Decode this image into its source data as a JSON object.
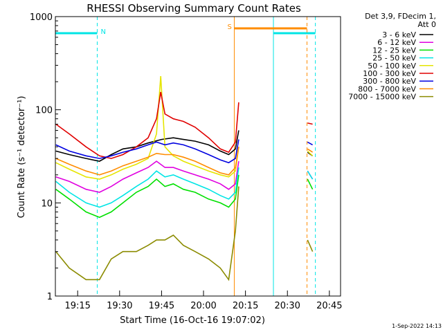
{
  "chart_data": {
    "type": "line",
    "title": "RHESSI Observing Summary Count Rates",
    "xlabel": "Start Time (16-Oct-16 19:07:02)",
    "ylabel": "Count Rate (s⁻¹ detector⁻¹)",
    "yscale": "log",
    "ylim": [
      1,
      1000
    ],
    "xlim": [
      "19:07:02",
      "20:49:00"
    ],
    "x_ticks": [
      "19:15",
      "19:30",
      "19:45",
      "20:00",
      "20:15",
      "20:30",
      "20:45"
    ],
    "y_ticks": [
      "1",
      "10",
      "100",
      "1000"
    ],
    "grid": false,
    "legend_position": "top-right",
    "info": {
      "line1": "Det 3,9, FDecim 1,",
      "line2": "Att 0"
    },
    "footer": "1-Sep-2022 14:13",
    "flags": [
      {
        "label": "N",
        "color": "#00e5e5",
        "intervals": [
          [
            "19:07:02",
            "19:22:00"
          ],
          [
            "20:25:00",
            "20:40:00"
          ]
        ]
      },
      {
        "label": "S",
        "color": "#ff8c00",
        "intervals": [
          [
            "20:11:00",
            "20:37:00"
          ]
        ]
      }
    ],
    "series": [
      {
        "name": "3 - 6 keV",
        "color": "#000000",
        "values": [
          [
            19.12,
            36
          ],
          [
            19.2,
            33
          ],
          [
            19.3,
            30
          ],
          [
            19.38,
            28
          ],
          [
            19.45,
            33
          ],
          [
            19.52,
            38
          ],
          [
            19.6,
            40
          ],
          [
            19.67,
            44
          ],
          [
            19.75,
            48
          ],
          [
            19.82,
            50
          ],
          [
            19.88,
            48
          ],
          [
            19.95,
            46
          ],
          [
            20.03,
            42
          ],
          [
            20.1,
            36
          ],
          [
            20.15,
            33
          ],
          [
            20.19,
            38
          ],
          [
            20.21,
            60
          ],
          [
            20.62,
            35
          ],
          [
            20.65,
            32
          ]
        ]
      },
      {
        "name": "6 - 12 keV",
        "color": "#e000e0",
        "values": [
          [
            19.12,
            19
          ],
          [
            19.2,
            17
          ],
          [
            19.3,
            14
          ],
          [
            19.38,
            13
          ],
          [
            19.45,
            15
          ],
          [
            19.52,
            18
          ],
          [
            19.6,
            21
          ],
          [
            19.67,
            24
          ],
          [
            19.72,
            28
          ],
          [
            19.77,
            24
          ],
          [
            19.82,
            24
          ],
          [
            19.88,
            22
          ],
          [
            19.95,
            20
          ],
          [
            20.03,
            18
          ],
          [
            20.1,
            16
          ],
          [
            20.15,
            14
          ],
          [
            20.19,
            16
          ],
          [
            20.21,
            28
          ],
          [
            20.62,
            22
          ],
          [
            20.65,
            18
          ]
        ]
      },
      {
        "name": "12 - 25 keV",
        "color": "#00e000",
        "values": [
          [
            19.12,
            14
          ],
          [
            19.2,
            11
          ],
          [
            19.3,
            8
          ],
          [
            19.38,
            7
          ],
          [
            19.45,
            8
          ],
          [
            19.52,
            10
          ],
          [
            19.6,
            13
          ],
          [
            19.67,
            15
          ],
          [
            19.72,
            18
          ],
          [
            19.77,
            15
          ],
          [
            19.82,
            16
          ],
          [
            19.88,
            14
          ],
          [
            19.95,
            13
          ],
          [
            20.03,
            11
          ],
          [
            20.1,
            10
          ],
          [
            20.15,
            9
          ],
          [
            20.19,
            11
          ],
          [
            20.21,
            20
          ],
          [
            20.62,
            18
          ],
          [
            20.65,
            14
          ]
        ]
      },
      {
        "name": "25 - 50 keV",
        "color": "#00e5e5",
        "values": [
          [
            19.12,
            17
          ],
          [
            19.2,
            13
          ],
          [
            19.3,
            10
          ],
          [
            19.38,
            9
          ],
          [
            19.45,
            10
          ],
          [
            19.52,
            12
          ],
          [
            19.6,
            15
          ],
          [
            19.67,
            18
          ],
          [
            19.72,
            22
          ],
          [
            19.77,
            19
          ],
          [
            19.82,
            20
          ],
          [
            19.88,
            18
          ],
          [
            19.95,
            16
          ],
          [
            20.03,
            14
          ],
          [
            20.1,
            12
          ],
          [
            20.15,
            11
          ],
          [
            20.19,
            13
          ],
          [
            20.21,
            24
          ],
          [
            20.62,
            22
          ],
          [
            20.65,
            18
          ]
        ]
      },
      {
        "name": "50 - 100 keV",
        "color": "#e5e500",
        "values": [
          [
            19.12,
            27
          ],
          [
            19.2,
            23
          ],
          [
            19.3,
            19
          ],
          [
            19.38,
            18
          ],
          [
            19.45,
            20
          ],
          [
            19.52,
            23
          ],
          [
            19.6,
            26
          ],
          [
            19.67,
            30
          ],
          [
            19.72,
            55
          ],
          [
            19.745,
            230
          ],
          [
            19.77,
            40
          ],
          [
            19.82,
            32
          ],
          [
            19.88,
            28
          ],
          [
            19.95,
            25
          ],
          [
            20.03,
            22
          ],
          [
            20.1,
            20
          ],
          [
            20.15,
            19
          ],
          [
            20.19,
            22
          ],
          [
            20.21,
            40
          ],
          [
            20.62,
            36
          ],
          [
            20.65,
            32
          ]
        ]
      },
      {
        "name": "100 - 300 keV",
        "color": "#e00000",
        "values": [
          [
            19.12,
            70
          ],
          [
            19.2,
            55
          ],
          [
            19.3,
            40
          ],
          [
            19.38,
            32
          ],
          [
            19.45,
            30
          ],
          [
            19.52,
            33
          ],
          [
            19.6,
            40
          ],
          [
            19.67,
            50
          ],
          [
            19.72,
            80
          ],
          [
            19.745,
            155
          ],
          [
            19.77,
            90
          ],
          [
            19.82,
            80
          ],
          [
            19.88,
            75
          ],
          [
            19.95,
            65
          ],
          [
            20.03,
            50
          ],
          [
            20.1,
            38
          ],
          [
            20.15,
            35
          ],
          [
            20.19,
            45
          ],
          [
            20.21,
            120
          ],
          [
            20.62,
            72
          ],
          [
            20.65,
            70
          ]
        ]
      },
      {
        "name": "300 - 800 keV",
        "color": "#0000e0",
        "values": [
          [
            19.12,
            42
          ],
          [
            19.2,
            36
          ],
          [
            19.3,
            32
          ],
          [
            19.38,
            30
          ],
          [
            19.45,
            32
          ],
          [
            19.52,
            35
          ],
          [
            19.6,
            38
          ],
          [
            19.67,
            42
          ],
          [
            19.72,
            45
          ],
          [
            19.77,
            42
          ],
          [
            19.82,
            44
          ],
          [
            19.88,
            42
          ],
          [
            19.95,
            38
          ],
          [
            20.03,
            33
          ],
          [
            20.1,
            29
          ],
          [
            20.15,
            27
          ],
          [
            20.19,
            30
          ],
          [
            20.21,
            48
          ],
          [
            20.62,
            45
          ],
          [
            20.65,
            42
          ]
        ]
      },
      {
        "name": "800 - 7000 keV",
        "color": "#ff8c00",
        "values": [
          [
            19.12,
            30
          ],
          [
            19.2,
            26
          ],
          [
            19.3,
            22
          ],
          [
            19.38,
            20
          ],
          [
            19.45,
            22
          ],
          [
            19.52,
            25
          ],
          [
            19.6,
            28
          ],
          [
            19.67,
            31
          ],
          [
            19.72,
            34
          ],
          [
            19.77,
            33
          ],
          [
            19.82,
            33
          ],
          [
            19.88,
            31
          ],
          [
            19.95,
            28
          ],
          [
            20.03,
            24
          ],
          [
            20.1,
            21
          ],
          [
            20.15,
            20
          ],
          [
            20.19,
            24
          ],
          [
            20.21,
            40
          ],
          [
            20.62,
            38
          ],
          [
            20.65,
            35
          ]
        ]
      },
      {
        "name": "7000 - 15000 keV",
        "color": "#8b8b00",
        "values": [
          [
            19.12,
            3
          ],
          [
            19.2,
            2
          ],
          [
            19.3,
            1.5
          ],
          [
            19.38,
            1.5
          ],
          [
            19.45,
            2.5
          ],
          [
            19.52,
            3
          ],
          [
            19.6,
            3
          ],
          [
            19.67,
            3.5
          ],
          [
            19.72,
            4
          ],
          [
            19.77,
            4
          ],
          [
            19.82,
            4.5
          ],
          [
            19.88,
            3.5
          ],
          [
            19.95,
            3
          ],
          [
            20.03,
            2.5
          ],
          [
            20.1,
            2
          ],
          [
            20.15,
            1.5
          ],
          [
            20.19,
            5
          ],
          [
            20.21,
            15
          ],
          [
            20.62,
            4
          ],
          [
            20.65,
            3
          ]
        ]
      }
    ]
  }
}
